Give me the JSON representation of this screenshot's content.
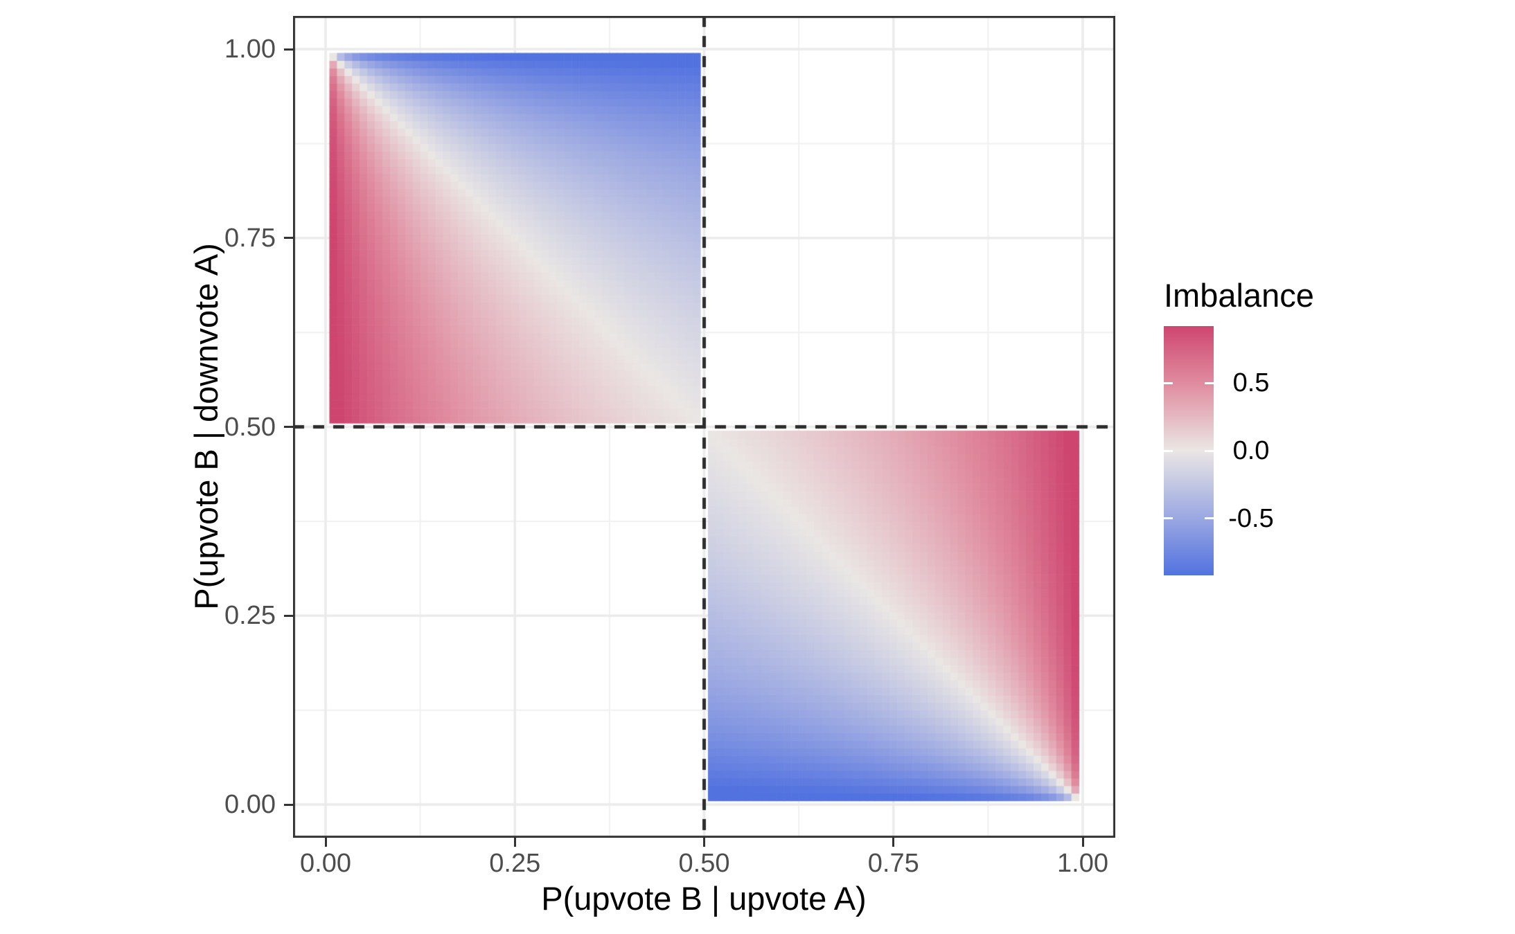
{
  "chart_data": {
    "type": "heatmap",
    "x_axis": {
      "label": "P(upvote B | upvote A)",
      "ticks": [
        "0.00",
        "0.25",
        "0.50",
        "0.75",
        "1.00"
      ],
      "tick_values": [
        0,
        0.25,
        0.5,
        0.75,
        1
      ],
      "range": [
        0,
        1
      ]
    },
    "y_axis": {
      "label": "P(upvote B | downvote A)",
      "ticks": [
        "0.00",
        "0.25",
        "0.50",
        "0.75",
        "1.00"
      ],
      "tick_values": [
        0,
        0.25,
        0.5,
        0.75,
        1
      ],
      "range": [
        0,
        1
      ]
    },
    "grid": {
      "major": [
        0,
        0.25,
        0.5,
        0.75,
        1
      ],
      "minor": [
        0.125,
        0.375,
        0.625,
        0.875
      ]
    },
    "quadrants": [
      {
        "name": "downvote-A-region",
        "x_range": [
          0,
          0.5
        ],
        "y_range": [
          0.5,
          1
        ],
        "formula": "((1-y)-x)/(((1-y)+x)||1)",
        "corner_values": {
          "bottom_left": 0.92,
          "top_left": 0.0,
          "top_right": -0.92,
          "bottom_right": 0.0
        }
      },
      {
        "name": "upvote-A-region",
        "x_range": [
          0.5,
          1
        ],
        "y_range": [
          0,
          0.5
        ],
        "formula": "(y-(1-x))/((y+(1-x))||1)",
        "corner_values": {
          "bottom_left": -0.92,
          "top_left": 0.0,
          "top_right": 0.92,
          "bottom_right": 0.0
        }
      }
    ],
    "tile_step": 0.01,
    "reference_lines": [
      {
        "orientation": "vertical",
        "at": 0.5,
        "style": "dashed"
      },
      {
        "orientation": "horizontal",
        "at": 0.5,
        "style": "dashed"
      }
    ],
    "legend": {
      "title": "Imbalance",
      "labels": [
        "0.5",
        "0.0",
        "-0.5"
      ],
      "label_values": [
        0.5,
        0.0,
        -0.5
      ],
      "limits": [
        -0.92,
        0.92
      ]
    },
    "colorscale": {
      "stops": [
        {
          "v": -0.92,
          "c": "#5272E0"
        },
        {
          "v": -0.5,
          "c": "#9AA7E2"
        },
        {
          "v": 0.0,
          "c": "#EAE6E4"
        },
        {
          "v": 0.5,
          "c": "#E08B9F"
        },
        {
          "v": 0.92,
          "c": "#CE4670"
        }
      ]
    },
    "colors": {
      "background": "#FFFFFF",
      "panel_border": "#333333",
      "grid_major": "#EBEBEB",
      "grid_minor": "#F1F1F1",
      "tick_mark": "#333333",
      "tick_label": "#4D4D4D",
      "title_text": "#000000",
      "dashed_line": "#2E2E2E",
      "scale_high": "#CE4670",
      "scale_mid": "#EAE6E4",
      "scale_low": "#5272E0"
    }
  }
}
